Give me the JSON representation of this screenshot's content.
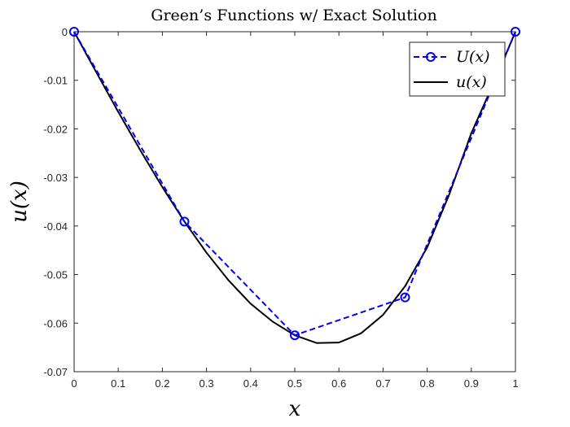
{
  "chart_data": {
    "type": "line",
    "title": "Green’s Functions w/ Exact Solution",
    "xlabel": "x",
    "ylabel": "u(x)",
    "xlim": [
      0,
      1
    ],
    "ylim": [
      -0.07,
      0
    ],
    "xticks": [
      "0",
      "0.1",
      "0.2",
      "0.3",
      "0.4",
      "0.5",
      "0.6",
      "0.7",
      "0.8",
      "0.9",
      "1"
    ],
    "yticks": [
      "0",
      "-0.01",
      "-0.02",
      "-0.03",
      "-0.04",
      "-0.05",
      "-0.06",
      "-0.07"
    ],
    "grid": false,
    "legend_position": "top-right",
    "series": [
      {
        "name": "U(x)",
        "color": "#0000ff",
        "style": "dashed-circle-markers",
        "x": [
          0,
          0.25,
          0.5,
          0.75,
          1
        ],
        "y": [
          0,
          -0.0391,
          -0.0625,
          -0.0547,
          0
        ]
      },
      {
        "name": "u(x)",
        "color": "#000000",
        "style": "solid",
        "x": [
          0,
          0.05,
          0.1,
          0.15,
          0.2,
          0.25,
          0.3,
          0.35,
          0.4,
          0.45,
          0.5,
          0.55,
          0.6,
          0.65,
          0.7,
          0.75,
          0.8,
          0.85,
          0.9,
          0.95,
          1
        ],
        "y": [
          0,
          -0.0083,
          -0.0165,
          -0.0244,
          -0.032,
          -0.0391,
          -0.0455,
          -0.0512,
          -0.056,
          -0.0597,
          -0.0625,
          -0.0641,
          -0.064,
          -0.0621,
          -0.0583,
          -0.0524,
          -0.0444,
          -0.0335,
          -0.0209,
          -0.0107,
          0
        ]
      }
    ]
  }
}
